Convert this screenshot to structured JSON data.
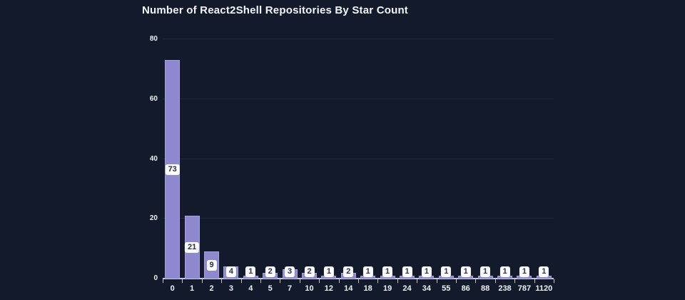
{
  "chart_data": {
    "type": "bar",
    "title": "Number of React2Shell Repositories By Star Count",
    "categories": [
      "0",
      "1",
      "2",
      "3",
      "4",
      "5",
      "7",
      "10",
      "12",
      "14",
      "18",
      "19",
      "24",
      "34",
      "55",
      "86",
      "88",
      "238",
      "787",
      "1120"
    ],
    "values": [
      73,
      21,
      9,
      4,
      1,
      2,
      3,
      2,
      1,
      2,
      1,
      1,
      1,
      1,
      1,
      1,
      1,
      1,
      1,
      1
    ],
    "xlabel": "",
    "ylabel": "",
    "ylim": [
      0,
      80
    ],
    "yticks": [
      0,
      20,
      40,
      60,
      80
    ],
    "grid": true,
    "legend": false,
    "data_labels": true,
    "colors": {
      "background": "#131a2b",
      "bar_fill": "#8e88ce",
      "bar_border": "#a6a0dc",
      "axis_line": "#c6c6d6",
      "grid_line": "#1e2940",
      "tick_label": "#f0f1f6",
      "title": "#f5f6fa",
      "value_label_bg": "#fafafa",
      "value_label_text": "#2b2f4e"
    }
  }
}
